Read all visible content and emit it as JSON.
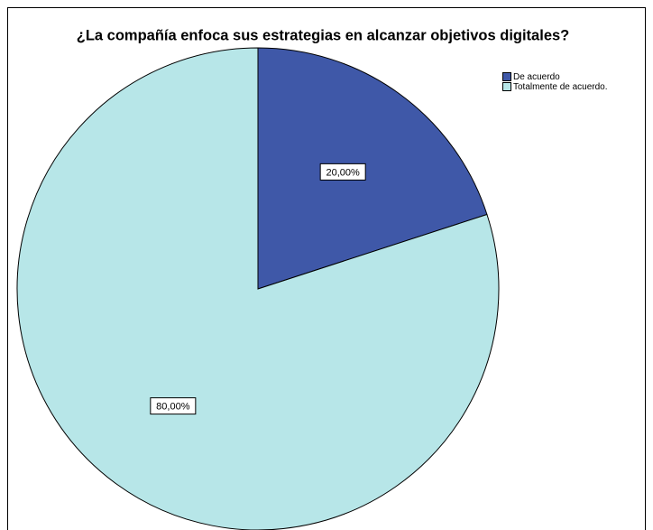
{
  "chart_data": {
    "type": "pie",
    "title": "¿La compañía enfoca sus estrategias en alcanzar objetivos digitales?",
    "categories": [
      "De acuerdo",
      "Totalmente de acuerdo."
    ],
    "values": [
      20,
      80
    ],
    "value_labels": [
      "20,00%",
      "80,00%"
    ],
    "colors": [
      "#3f58a8",
      "#b7e6e8"
    ],
    "legend": "upper right"
  }
}
